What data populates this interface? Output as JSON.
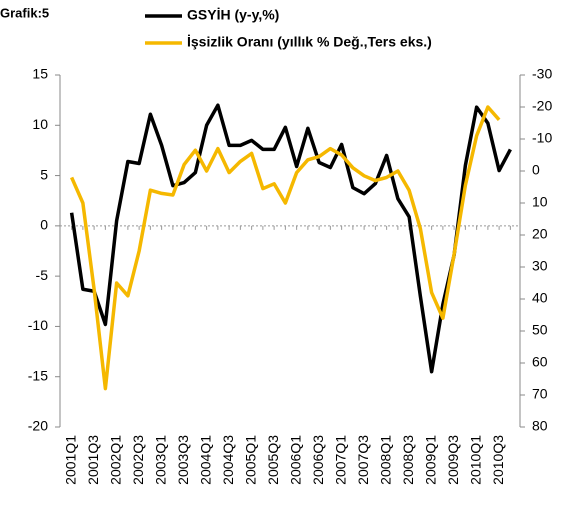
{
  "chart_data": {
    "type": "line",
    "title": "Grafik:5",
    "categories": [
      "2001Q1",
      null,
      "2001Q3",
      null,
      "2002Q1",
      null,
      "2002Q3",
      null,
      "2003Q1",
      null,
      "2003Q3",
      null,
      "2004Q1",
      null,
      "2004Q3",
      null,
      "2005Q1",
      null,
      "2005Q3",
      null,
      "2006Q1",
      null,
      "2006Q3",
      null,
      "2007Q1",
      null,
      "2007Q3",
      null,
      "2008Q1",
      null,
      "2008Q3",
      null,
      "2009Q1",
      null,
      "2009Q3",
      null,
      "2010Q1",
      null,
      "2010Q3",
      null
    ],
    "series": [
      {
        "name": "GSYİH (y-y,%)",
        "color": "#000000",
        "axis": "y",
        "values": [
          1.3,
          -6.3,
          -6.5,
          -9.8,
          0.5,
          6.4,
          6.2,
          11.1,
          8.0,
          4.0,
          4.3,
          5.3,
          10.0,
          12.0,
          8.0,
          8.0,
          8.5,
          7.6,
          7.6,
          9.8,
          5.9,
          9.7,
          6.3,
          5.8,
          8.1,
          3.8,
          3.2,
          4.2,
          7.0,
          2.7,
          0.9,
          -7.0,
          -14.5,
          -7.8,
          -2.9,
          6.0,
          11.8,
          10.2,
          5.5,
          7.6
        ]
      },
      {
        "name": "İşsizlik Oranı (yıllık % Değ.,Ters eks.)",
        "color": "#f5b800",
        "axis": "y2",
        "values": [
          2,
          10,
          37,
          68,
          35,
          39,
          25,
          6,
          7,
          7.5,
          -2,
          -6.5,
          0,
          -7,
          0.5,
          -3,
          -5.5,
          5.5,
          4,
          10,
          0.5,
          -3.5,
          -4.5,
          -7,
          -5,
          -1,
          1.5,
          3,
          2,
          0,
          6,
          18,
          38,
          46,
          26,
          4.5,
          -11,
          -20,
          -16,
          null
        ]
      }
    ],
    "ylim": [
      -20,
      15
    ],
    "yticks": [
      -20,
      -15,
      -10,
      -5,
      0,
      5,
      10,
      15
    ],
    "y2lim": [
      80,
      -30
    ],
    "y2ticks": [
      80,
      70,
      60,
      50,
      40,
      30,
      20,
      10,
      0,
      -10,
      -20,
      -30
    ],
    "grid": false
  }
}
